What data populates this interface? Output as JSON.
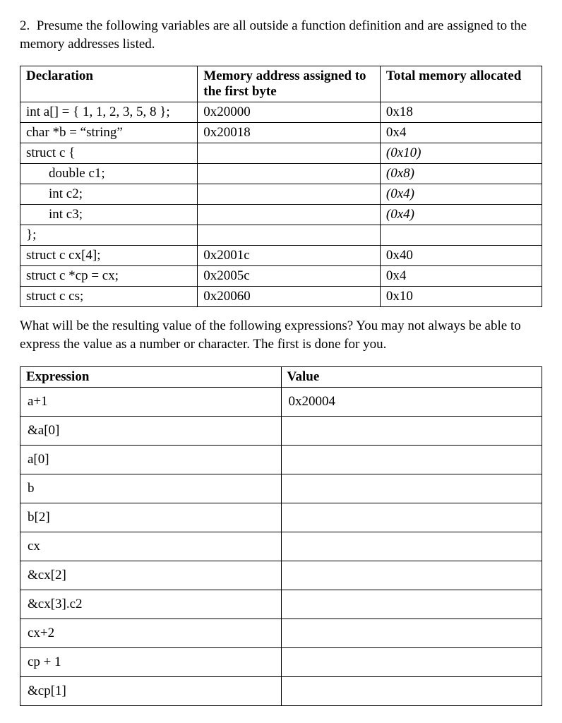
{
  "question": {
    "number": "2.",
    "text": "Presume the following variables are all outside a function definition and are assigned to the memory addresses listed."
  },
  "decl_table": {
    "headers": {
      "col1": "Declaration",
      "col2": "Memory address assigned to the first byte",
      "col3": "Total memory allocated"
    },
    "rows": [
      {
        "decl": "int a[] = { 1, 1, 2, 3, 5, 8 };",
        "addr": "0x20000",
        "mem": "0x18",
        "indent": false,
        "italic_mem": false
      },
      {
        "decl": "char *b = “string”",
        "addr": "0x20018",
        "mem": "0x4",
        "indent": false,
        "italic_mem": false
      },
      {
        "decl": "struct c {",
        "addr": "",
        "mem": "(0x10)",
        "indent": false,
        "italic_mem": true
      },
      {
        "decl": "double c1;",
        "addr": "",
        "mem": "(0x8)",
        "indent": true,
        "italic_mem": true
      },
      {
        "decl": "int c2;",
        "addr": "",
        "mem": "(0x4)",
        "indent": true,
        "italic_mem": true
      },
      {
        "decl": "int c3;",
        "addr": "",
        "mem": "(0x4)",
        "indent": true,
        "italic_mem": true
      },
      {
        "decl": "};",
        "addr": "",
        "mem": "",
        "indent": false,
        "italic_mem": false
      },
      {
        "decl": "struct c cx[4];",
        "addr": "0x2001c",
        "mem": "0x40",
        "indent": false,
        "italic_mem": false
      },
      {
        "decl": "struct c *cp = cx;",
        "addr": "0x2005c",
        "mem": "0x4",
        "indent": false,
        "italic_mem": false
      },
      {
        "decl": "struct c cs;",
        "addr": "0x20060",
        "mem": "0x10",
        "indent": false,
        "italic_mem": false
      }
    ]
  },
  "mid_paragraph": "What will be the resulting value of the following expressions?  You may not always be able to express the value as a number or character.  The first is done for you.",
  "expr_table": {
    "headers": {
      "col1": "Expression",
      "col2": "Value"
    },
    "rows": [
      {
        "expr": "a+1",
        "val": "0x20004"
      },
      {
        "expr": "&a[0]",
        "val": ""
      },
      {
        "expr": "a[0]",
        "val": ""
      },
      {
        "expr": "b",
        "val": ""
      },
      {
        "expr": "b[2]",
        "val": ""
      },
      {
        "expr": "cx",
        "val": ""
      },
      {
        "expr": "&cx[2]",
        "val": ""
      },
      {
        "expr": "&cx[3].c2",
        "val": ""
      },
      {
        "expr": "cx+2",
        "val": ""
      },
      {
        "expr": "cp + 1",
        "val": ""
      },
      {
        "expr": "&cp[1]",
        "val": ""
      }
    ]
  }
}
